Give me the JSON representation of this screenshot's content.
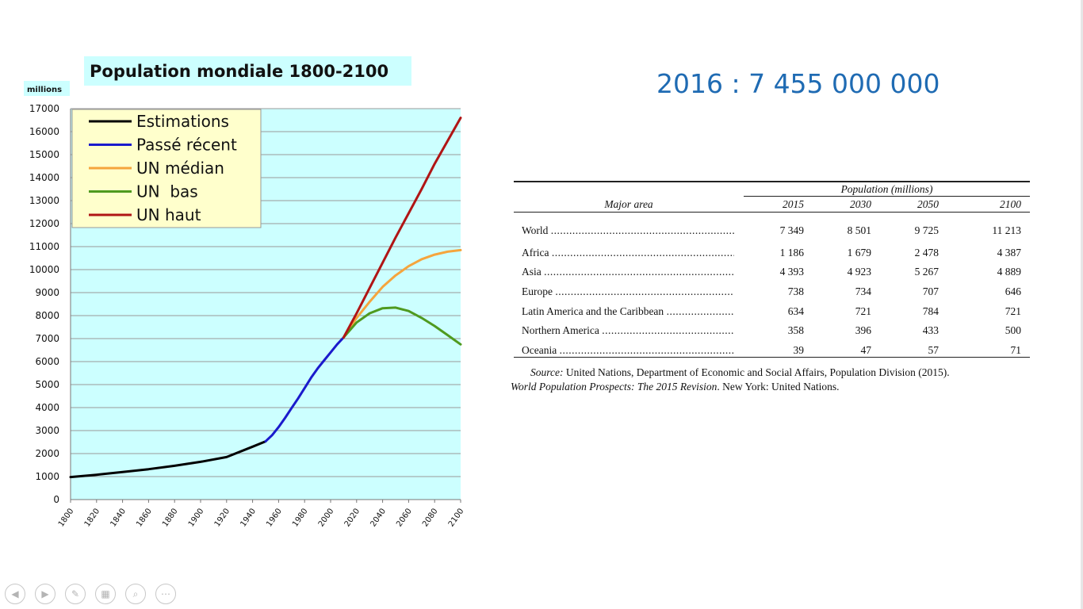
{
  "headline": "2016 : 7 455 000 000",
  "chart_data": {
    "type": "line",
    "title": "Population mondiale 1800-2100",
    "ylabel": "millions",
    "xlabel": "",
    "xlim": [
      1800,
      2100
    ],
    "ylim": [
      0,
      17000
    ],
    "y_ticks": [
      0,
      1000,
      2000,
      3000,
      4000,
      5000,
      6000,
      7000,
      8000,
      9000,
      10000,
      11000,
      12000,
      13000,
      14000,
      15000,
      16000,
      17000
    ],
    "x_ticks": [
      1800,
      1820,
      1840,
      1860,
      1880,
      1900,
      1920,
      1940,
      1960,
      1980,
      2000,
      2020,
      2040,
      2060,
      2080,
      2100
    ],
    "grid": "horizontal",
    "legend_position": "top-left",
    "background_color": "#ccffff",
    "series": [
      {
        "name": "Estimations",
        "color": "#000000",
        "points": [
          [
            1800,
            980
          ],
          [
            1820,
            1080
          ],
          [
            1840,
            1200
          ],
          [
            1860,
            1320
          ],
          [
            1880,
            1470
          ],
          [
            1900,
            1640
          ],
          [
            1920,
            1850
          ],
          [
            1940,
            2300
          ],
          [
            1950,
            2530
          ]
        ]
      },
      {
        "name": "Passé récent",
        "color": "#1a1acc",
        "points": [
          [
            1950,
            2530
          ],
          [
            1955,
            2800
          ],
          [
            1960,
            3150
          ],
          [
            1965,
            3550
          ],
          [
            1970,
            3980
          ],
          [
            1975,
            4400
          ],
          [
            1980,
            4850
          ],
          [
            1985,
            5300
          ],
          [
            1990,
            5700
          ],
          [
            1995,
            6050
          ],
          [
            2000,
            6400
          ],
          [
            2005,
            6750
          ],
          [
            2010,
            7050
          ]
        ]
      },
      {
        "name": "UN médian",
        "color": "#f5a53d",
        "points": [
          [
            2010,
            7050
          ],
          [
            2020,
            7900
          ],
          [
            2030,
            8600
          ],
          [
            2040,
            9250
          ],
          [
            2050,
            9750
          ],
          [
            2060,
            10150
          ],
          [
            2070,
            10450
          ],
          [
            2080,
            10650
          ],
          [
            2090,
            10780
          ],
          [
            2100,
            10850
          ]
        ]
      },
      {
        "name": "UN  bas",
        "color": "#4f9a1f",
        "points": [
          [
            2010,
            7050
          ],
          [
            2020,
            7700
          ],
          [
            2030,
            8100
          ],
          [
            2040,
            8320
          ],
          [
            2050,
            8350
          ],
          [
            2060,
            8200
          ],
          [
            2070,
            7900
          ],
          [
            2080,
            7550
          ],
          [
            2090,
            7150
          ],
          [
            2100,
            6750
          ]
        ]
      },
      {
        "name": "UN haut",
        "color": "#b01515",
        "points": [
          [
            2010,
            7050
          ],
          [
            2020,
            8100
          ],
          [
            2030,
            9200
          ],
          [
            2040,
            10300
          ],
          [
            2050,
            11400
          ],
          [
            2060,
            12450
          ],
          [
            2070,
            13500
          ],
          [
            2080,
            14600
          ],
          [
            2090,
            15600
          ],
          [
            2100,
            16600
          ]
        ]
      }
    ]
  },
  "table": {
    "group_header": "Population (millions)",
    "area_header": "Major area",
    "years": [
      "2015",
      "2030",
      "2050",
      "2100"
    ],
    "rows": [
      {
        "area": "World",
        "values": [
          "7 349",
          "8 501",
          "9 725",
          "11 213"
        ]
      },
      {
        "area": "Africa",
        "values": [
          "1 186",
          "1 679",
          "2 478",
          "4 387"
        ]
      },
      {
        "area": "Asia",
        "values": [
          "4 393",
          "4 923",
          "5 267",
          "4 889"
        ]
      },
      {
        "area": "Europe",
        "values": [
          "738",
          "734",
          "707",
          "646"
        ]
      },
      {
        "area": "Latin America and the Caribbean",
        "values": [
          "634",
          "721",
          "784",
          "721"
        ]
      },
      {
        "area": "Northern America",
        "values": [
          "358",
          "396",
          "433",
          "500"
        ]
      },
      {
        "area": "Oceania",
        "values": [
          "39",
          "47",
          "57",
          "71"
        ]
      }
    ]
  },
  "source": {
    "label": "Source:",
    "line1": " United Nations, Department of Economic and Social Affairs, Population Division (2015).",
    "line2_italic": "World Population Prospects: The 2015 Revision",
    "line2_rest": ". New York: United Nations."
  },
  "toolbar": [
    {
      "icon": "previous-icon",
      "glyph": "◀"
    },
    {
      "icon": "next-icon",
      "glyph": "▶"
    },
    {
      "icon": "pen-icon",
      "glyph": "✎"
    },
    {
      "icon": "slides-grid-icon",
      "glyph": "▦"
    },
    {
      "icon": "zoom-icon",
      "glyph": "⌕"
    },
    {
      "icon": "more-options-icon",
      "glyph": "⋯"
    }
  ]
}
